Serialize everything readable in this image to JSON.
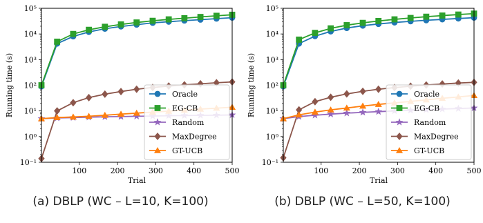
{
  "chart_data": [
    {
      "type": "line",
      "caption": "(a) DBLP (WC – L=10, K=100)",
      "xlabel": "Trial",
      "ylabel": "Running time (s)",
      "xlim": [
        1,
        500
      ],
      "ylim": [
        0.1,
        100000
      ],
      "yscale": "log",
      "xticks": [
        "100",
        "200",
        "300",
        "400",
        "500"
      ],
      "yticks": [
        "10⁻¹",
        "10⁰",
        "10¹",
        "10²",
        "10³",
        "10⁴",
        "10⁵"
      ],
      "legend_position": "lower-right",
      "x": [
        1,
        42,
        84,
        125,
        167,
        209,
        250,
        292,
        334,
        375,
        417,
        459,
        500
      ],
      "series": [
        {
          "name": "Oracle",
          "color": "#1f77b4",
          "marker": "circle",
          "values": [
            90,
            4200,
            8000,
            12000,
            16000,
            19500,
            23000,
            27000,
            30000,
            33000,
            36000,
            39500,
            43000
          ]
        },
        {
          "name": "EG-CB",
          "color": "#2ca02c",
          "marker": "square",
          "values": [
            100,
            5000,
            10000,
            14500,
            19000,
            23500,
            28000,
            32500,
            37000,
            41000,
            46000,
            51000,
            56000
          ]
        },
        {
          "name": "Random",
          "color": "#9467bd",
          "marker": "star",
          "values": [
            5.0,
            5.3,
            5.5,
            5.7,
            5.9,
            6.0,
            6.2,
            6.3,
            6.5,
            6.6,
            6.7,
            6.8,
            7.0
          ]
        },
        {
          "name": "MaxDegree",
          "color": "#8c564b",
          "marker": "diamond",
          "values": [
            0.14,
            10,
            21,
            33,
            45,
            57,
            70,
            82,
            93,
            104,
            114,
            125,
            135
          ]
        },
        {
          "name": "GT-UCB",
          "color": "#ff7f0e",
          "marker": "triangle",
          "values": [
            5.0,
            5.5,
            5.8,
            6.2,
            6.8,
            7.5,
            8.2,
            9.0,
            9.8,
            10.8,
            11.8,
            12.8,
            14.0
          ]
        }
      ]
    },
    {
      "type": "line",
      "caption": "(b) DBLP (WC – L=50, K=100)",
      "xlabel": "Trial",
      "ylabel": "Running time (s)",
      "xlim": [
        1,
        500
      ],
      "ylim": [
        0.1,
        100000
      ],
      "yscale": "log",
      "xticks": [
        "100",
        "200",
        "300",
        "400",
        "500"
      ],
      "yticks": [
        "10⁻¹",
        "10⁰",
        "10¹",
        "10²",
        "10³",
        "10⁴",
        "10⁵"
      ],
      "legend_position": "lower-right",
      "x": [
        1,
        42,
        84,
        125,
        167,
        209,
        250,
        292,
        334,
        375,
        417,
        459,
        500
      ],
      "series": [
        {
          "name": "Oracle",
          "color": "#1f77b4",
          "marker": "circle",
          "values": [
            90,
            4200,
            8200,
            12500,
            17000,
            21000,
            24500,
            28000,
            31000,
            34000,
            37000,
            40000,
            43000
          ]
        },
        {
          "name": "EG-CB",
          "color": "#2ca02c",
          "marker": "square",
          "values": [
            100,
            6000,
            11000,
            16500,
            22000,
            27000,
            32000,
            37000,
            42000,
            47000,
            52000,
            57000,
            62000
          ]
        },
        {
          "name": "Random",
          "color": "#9467bd",
          "marker": "star",
          "values": [
            5.0,
            6.0,
            6.8,
            7.5,
            8.2,
            8.8,
            9.4,
            10.0,
            10.6,
            11.2,
            11.8,
            12.4,
            13.0
          ]
        },
        {
          "name": "MaxDegree",
          "color": "#8c564b",
          "marker": "diamond",
          "values": [
            0.15,
            11,
            23,
            34,
            46,
            58,
            70,
            81,
            92,
            102,
            112,
            122,
            130
          ]
        },
        {
          "name": "GT-UCB",
          "color": "#ff7f0e",
          "marker": "triangle",
          "values": [
            5.0,
            7.0,
            9.0,
            11.0,
            13.0,
            15.5,
            18.0,
            20.5,
            23.5,
            27.0,
            31.0,
            35.0,
            40.0
          ]
        }
      ]
    }
  ]
}
